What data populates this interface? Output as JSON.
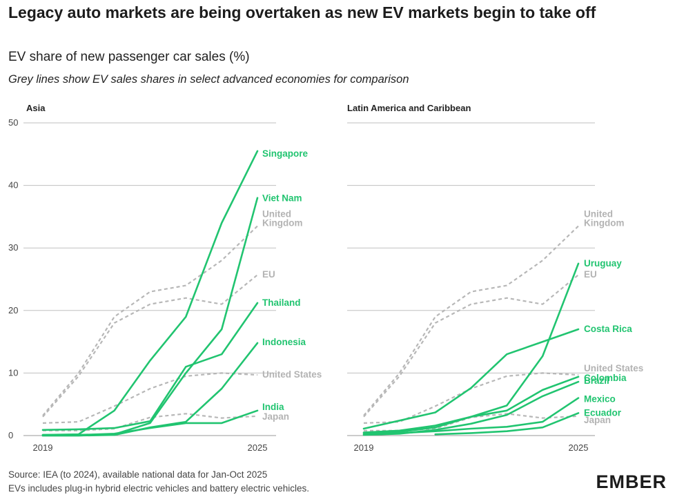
{
  "title": "Legacy auto markets are being overtaken as new EV markets begin to take off",
  "subtitle": "EV share of new passenger car sales (%)",
  "note": "Grey lines show EV sales shares in select advanced economies for comparison",
  "source_line1": "Source: IEA (to 2024), available national data for Jan-Oct 2025",
  "source_line2": "EVs includes plug-in hybrid electric vehicles and battery electric vehicles.",
  "logo": "EMBER",
  "colors": {
    "ev": "#21c470",
    "reference": "#b7b7b7"
  },
  "chart_data": [
    {
      "type": "line",
      "panel": "Asia",
      "title": "Asia",
      "x": [
        2019,
        2020,
        2021,
        2022,
        2023,
        2024,
        2025
      ],
      "x_ticks": [
        "2019",
        "2025"
      ],
      "y_ticks": [
        "0",
        "10",
        "20",
        "30",
        "40",
        "50"
      ],
      "ylim": [
        0,
        50
      ],
      "grid": true,
      "series": [
        {
          "name": "Singapore",
          "kind": "ev",
          "values": [
            0.1,
            0.2,
            4,
            12,
            19,
            34,
            45.5
          ]
        },
        {
          "name": "Viet Nam",
          "kind": "ev",
          "values": [
            0,
            0,
            0.2,
            2,
            10,
            17,
            38
          ]
        },
        {
          "name": "Thailand",
          "kind": "ev",
          "values": [
            0.9,
            1,
            1.2,
            2.3,
            11,
            13,
            21.2
          ]
        },
        {
          "name": "Indonesia",
          "kind": "ev",
          "values": [
            0,
            0,
            0.1,
            1.3,
            2.2,
            7.5,
            14.8
          ]
        },
        {
          "name": "India",
          "kind": "ev",
          "values": [
            0.1,
            0.1,
            0.3,
            1.2,
            2,
            2,
            4
          ]
        },
        {
          "name": "United Kingdom",
          "label": "United\nKingdom",
          "kind": "reference",
          "values": [
            3.2,
            10,
            19,
            23,
            24,
            28,
            33.5
          ]
        },
        {
          "name": "EU",
          "kind": "reference",
          "values": [
            3,
            9.5,
            18,
            21,
            22,
            21,
            25.7
          ]
        },
        {
          "name": "United States",
          "kind": "reference",
          "values": [
            2,
            2.2,
            4.7,
            7.5,
            9.5,
            10,
            9.7
          ]
        },
        {
          "name": "Japan",
          "kind": "reference",
          "values": [
            0.8,
            0.8,
            1.1,
            2.9,
            3.5,
            2.8,
            3.1
          ]
        }
      ]
    },
    {
      "type": "line",
      "panel": "Latin America and Caribbean",
      "title": "Latin America and Caribbean",
      "x": [
        2019,
        2020,
        2021,
        2022,
        2023,
        2024,
        2025
      ],
      "x_ticks": [
        "2019",
        "2025"
      ],
      "y_ticks": [
        "0",
        "10",
        "20",
        "30",
        "40",
        "50"
      ],
      "ylim": [
        0,
        50
      ],
      "grid": true,
      "series": [
        {
          "name": "Uruguay",
          "kind": "ev",
          "values": [
            0.4,
            0.6,
            1.3,
            3,
            4.8,
            12.7,
            27.5
          ]
        },
        {
          "name": "Costa Rica",
          "kind": "ev",
          "values": [
            1.1,
            2.4,
            3.7,
            7.6,
            13,
            15,
            17
          ]
        },
        {
          "name": "Colombia",
          "kind": "ev",
          "values": [
            0.5,
            0.8,
            1.6,
            3,
            4,
            7.3,
            9.4
          ]
        },
        {
          "name": "Brazil",
          "kind": "ev",
          "values": [
            0.1,
            0.3,
            0.9,
            1.9,
            3.3,
            6.3,
            8.6
          ]
        },
        {
          "name": "Mexico",
          "kind": "ev",
          "values": [
            0.2,
            0.4,
            0.7,
            1.1,
            1.4,
            2.2,
            6
          ]
        },
        {
          "name": "Ecuador",
          "kind": "ev",
          "values": [
            null,
            null,
            0.2,
            0.4,
            0.7,
            1.3,
            3.6
          ]
        },
        {
          "name": "United Kingdom",
          "label": "United\nKingdom",
          "kind": "reference",
          "values": [
            3.2,
            10,
            19,
            23,
            24,
            28,
            33.5
          ]
        },
        {
          "name": "EU",
          "kind": "reference",
          "values": [
            3,
            9.5,
            18,
            21,
            22,
            21,
            25.7
          ]
        },
        {
          "name": "United States",
          "kind": "reference",
          "values": [
            2,
            2.2,
            4.7,
            7.5,
            9.5,
            10,
            9.7
          ]
        },
        {
          "name": "Japan",
          "kind": "reference",
          "values": [
            0.8,
            0.8,
            1.1,
            2.9,
            3.5,
            2.8,
            3.1
          ]
        }
      ]
    }
  ]
}
